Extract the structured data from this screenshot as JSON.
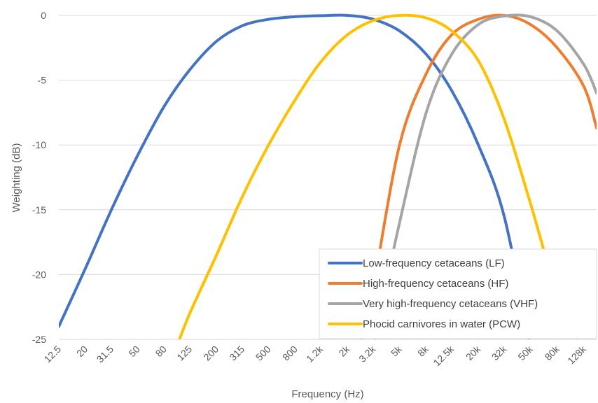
{
  "chart_data": {
    "type": "line",
    "title": "",
    "xlabel": "Frequency (Hz)",
    "ylabel": "Weighting (dB)",
    "ylim": [
      -25,
      0
    ],
    "yticks": [
      "0",
      "-5",
      "-10",
      "-15",
      "-20",
      "-25"
    ],
    "ytick_values": [
      0,
      -5,
      -10,
      -15,
      -20,
      -25
    ],
    "x_scale": "log",
    "xlim": [
      12.5,
      160000
    ],
    "categories": [
      "12.5",
      "20",
      "31.5",
      "50",
      "80",
      "125",
      "200",
      "315",
      "500",
      "800",
      "1.2k",
      "2k",
      "3.2k",
      "5k",
      "8k",
      "12.5k",
      "20k",
      "32k",
      "50k",
      "80k",
      "128k"
    ],
    "tick_values": [
      12.5,
      20,
      31.5,
      50,
      80,
      125,
      200,
      315,
      500,
      800,
      1250,
      2000,
      3150,
      5000,
      8000,
      12500,
      20000,
      31500,
      50000,
      80000,
      128000
    ],
    "grid": "horizontal",
    "legend_position": "bottom-right",
    "series": [
      {
        "name": "Low-frequency cetaceans (LF)",
        "color": "#4472C4",
        "x": [
          12.5,
          20,
          31.5,
          50,
          80,
          125,
          200,
          315,
          500,
          800,
          1250,
          2000,
          3150,
          5000,
          8000,
          12500,
          20000,
          31500,
          50000
        ],
        "y": [
          -24.0,
          -19.5,
          -15.0,
          -10.8,
          -7.0,
          -4.2,
          -2.0,
          -0.8,
          -0.3,
          -0.1,
          -0.02,
          0,
          -0.3,
          -1.2,
          -3.0,
          -5.8,
          -10.0,
          -15.5,
          -25.5
        ]
      },
      {
        "name": "High-frequency cetaceans (HF)",
        "color": "#ED7D31",
        "x": [
          2500,
          3150,
          5000,
          8000,
          12500,
          20000,
          31500,
          50000,
          80000,
          128000,
          160000
        ],
        "y": [
          -25.5,
          -21.0,
          -10.0,
          -4.5,
          -1.5,
          -0.3,
          0,
          -0.7,
          -2.5,
          -5.5,
          -8.7
        ]
      },
      {
        "name": "Very high-frequency cetaceans (VHF)",
        "color": "#A5A5A5",
        "x": [
          3150,
          5000,
          8000,
          12500,
          20000,
          31500,
          50000,
          80000,
          128000,
          160000
        ],
        "y": [
          -25.5,
          -16.0,
          -7.5,
          -3.0,
          -0.7,
          -0.05,
          -0.1,
          -1.2,
          -3.8,
          -6.0
        ]
      },
      {
        "name": "Phocid carnivores in water (PCW)",
        "color": "#FFC000",
        "x": [
          100,
          125,
          200,
          315,
          500,
          800,
          1250,
          2000,
          3150,
          5000,
          8000,
          12500,
          20000,
          31500,
          50000,
          80000,
          128000
        ],
        "y": [
          -25.5,
          -23.0,
          -18.5,
          -14.0,
          -10.0,
          -6.5,
          -3.6,
          -1.5,
          -0.4,
          0,
          -0.2,
          -1.2,
          -3.5,
          -8.0,
          -14.5,
          -21.5,
          -26.0
        ]
      }
    ]
  }
}
